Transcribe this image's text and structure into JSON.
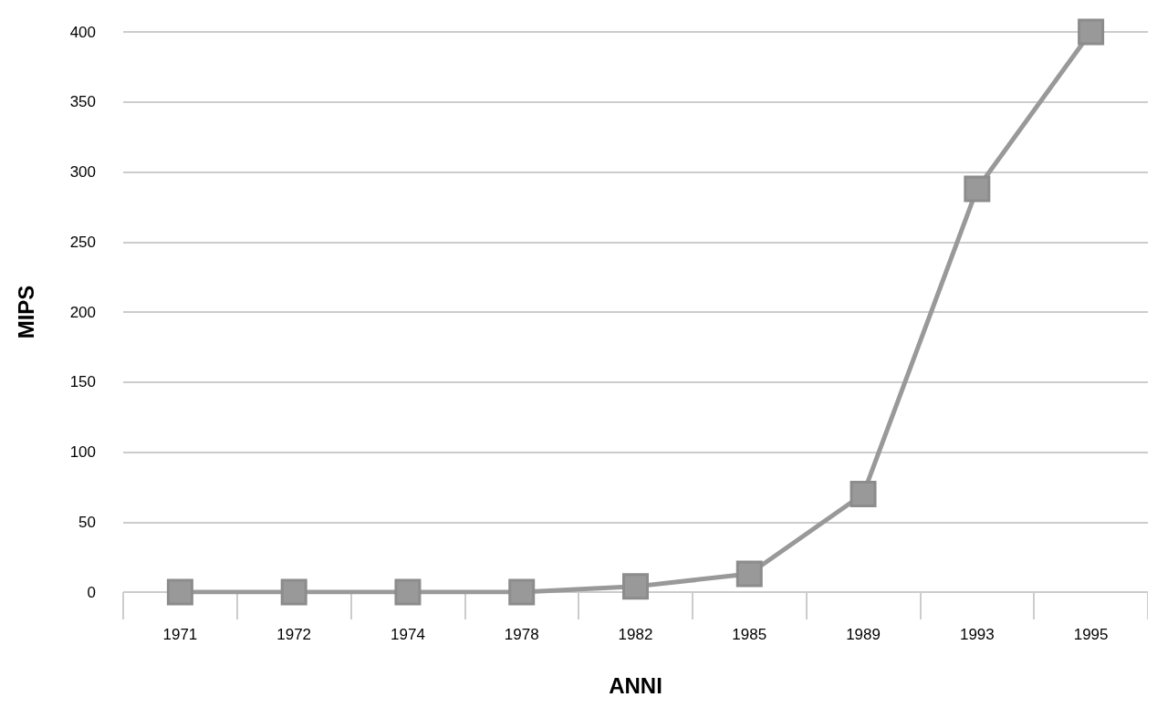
{
  "chart_data": {
    "type": "line",
    "xlabel": "ANNI",
    "ylabel": "MIPS",
    "categories": [
      "1971",
      "1972",
      "1974",
      "1978",
      "1982",
      "1985",
      "1989",
      "1993",
      "1995"
    ],
    "series": [
      {
        "color": "#999999",
        "values": [
          0,
          0,
          0,
          0,
          4,
          13,
          70,
          288,
          400
        ]
      }
    ],
    "ylim": [
      0,
      400
    ],
    "yticks": [
      0,
      50,
      100,
      150,
      200,
      250,
      300,
      350,
      400
    ],
    "grid": "y",
    "marker": "square",
    "line_style": "solid"
  }
}
